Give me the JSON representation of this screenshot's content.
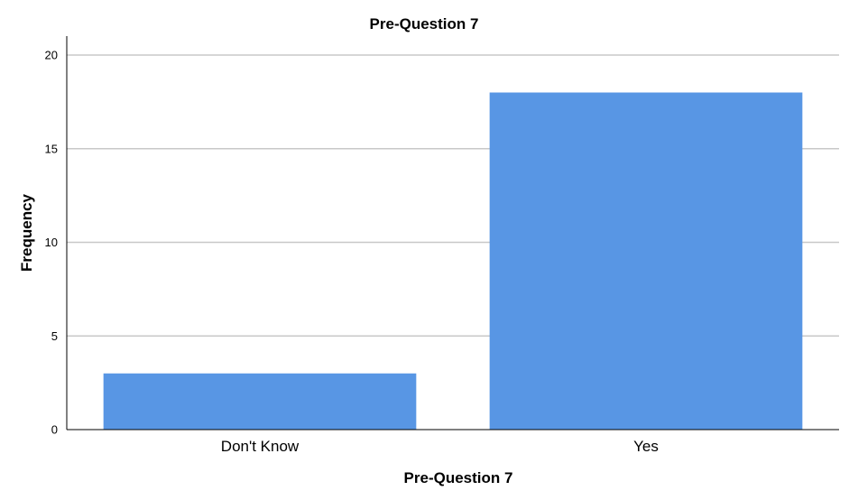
{
  "colors": {
    "bar": "#5896E4",
    "grid": "#C8C8C8",
    "axis": "#000000",
    "background": "#FFFFFF"
  },
  "chart_data": {
    "type": "bar",
    "title": "Pre-Question 7",
    "xlabel": "Pre-Question 7",
    "ylabel": "Frequency",
    "categories": [
      "Don't Know",
      "Yes"
    ],
    "values": [
      3,
      18
    ],
    "ylim": [
      0,
      20
    ],
    "yticks": [
      0,
      5,
      10,
      15,
      20
    ],
    "grid": true,
    "legend": "none"
  }
}
